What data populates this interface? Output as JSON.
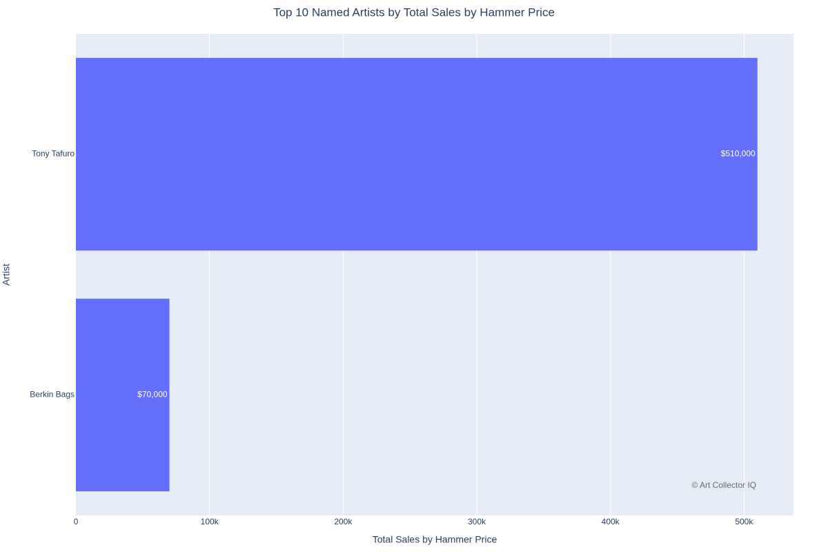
{
  "chart_data": {
    "type": "bar",
    "orientation": "horizontal",
    "title": "Top 10 Named Artists by Total Sales by Hammer Price",
    "x_label": "Total Sales by Hammer Price",
    "y_label": "Artist",
    "categories": [
      "Berkin Bags",
      "Tony Tafuro"
    ],
    "values": [
      70000,
      510000
    ],
    "value_labels": [
      "$70,000",
      "$510,000"
    ],
    "color": "#636efa",
    "xlim": [
      0,
      537000
    ],
    "xticks": [
      0,
      {
        "value": 100000,
        "label": "100k"
      },
      {
        "value": 200000,
        "label": "200k"
      },
      {
        "value": 300000,
        "label": "300k"
      },
      {
        "value": 400000,
        "label": "400k"
      },
      {
        "value": 500000,
        "label": "500k"
      }
    ],
    "grid": true,
    "annotation": "© Art Collector IQ"
  }
}
